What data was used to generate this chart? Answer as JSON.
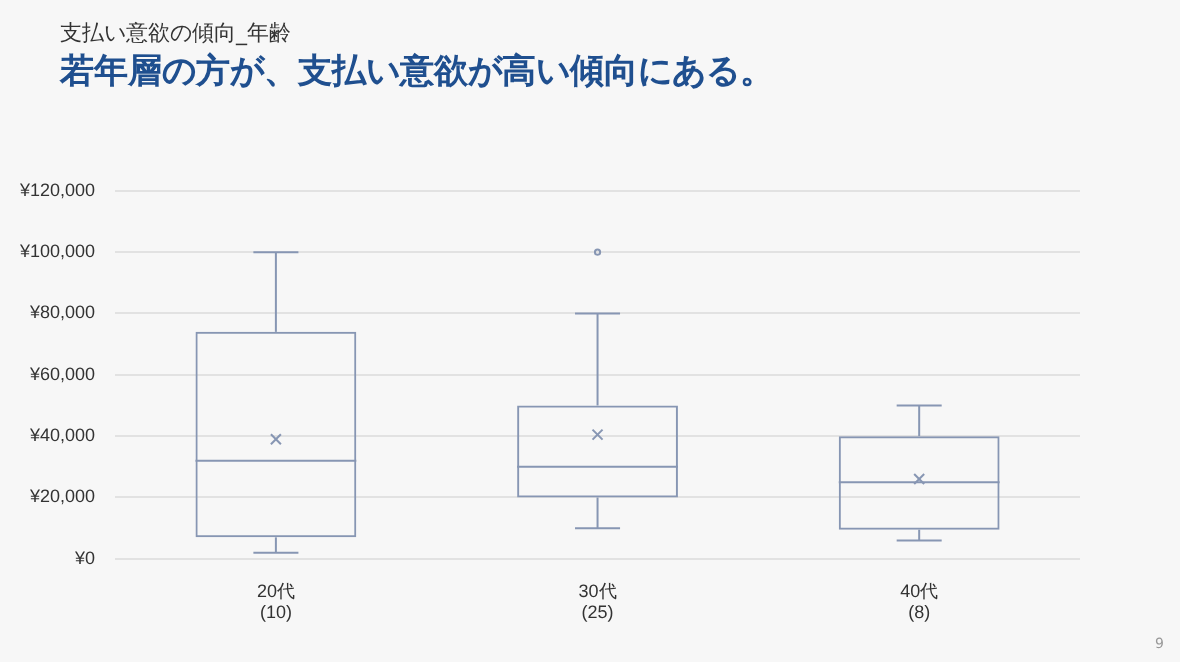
{
  "chart_data": {
    "type": "box",
    "title": "若年層の方が、支払い意欲が高い傾向にある。",
    "subtitle": "支払い意欲の傾向_年齢",
    "categories": [
      "20代\n(10)",
      "30代\n(25)",
      "40代\n(8)"
    ],
    "boxes": [
      {
        "low": 2000,
        "q1": 7000,
        "median": 32000,
        "q3": 74000,
        "high": 100000,
        "mean": 39000
      },
      {
        "low": 10000,
        "q1": 20000,
        "median": 30000,
        "q3": 50000,
        "high": 80000,
        "mean": 40500,
        "outliers": [
          100000
        ]
      },
      {
        "low": 6000,
        "q1": 9500,
        "median": 25000,
        "q3": 40000,
        "high": 50000,
        "mean": 26000
      }
    ],
    "color": "#8796b3",
    "ylim": [
      0,
      120000
    ],
    "yticks": [
      {
        "value": 0,
        "label": "¥0"
      },
      {
        "value": 20000,
        "label": "¥20,000"
      },
      {
        "value": 40000,
        "label": "¥40,000"
      },
      {
        "value": 60000,
        "label": "¥60,000"
      },
      {
        "value": 80000,
        "label": "¥80,000"
      },
      {
        "value": 100000,
        "label": "¥100,000"
      },
      {
        "value": 120000,
        "label": "¥120,000"
      }
    ],
    "grid": "y",
    "legend": false,
    "annotations": [
      "9"
    ]
  }
}
